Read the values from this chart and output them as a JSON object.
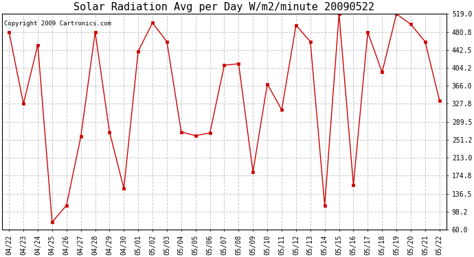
{
  "title": "Solar Radiation Avg per Day W/m2/minute 20090522",
  "copyright": "Copyright 2009 Cartronics.com",
  "x_labels": [
    "04/22",
    "04/23",
    "04/24",
    "04/25",
    "04/26",
    "04/27",
    "04/28",
    "04/29",
    "04/30",
    "05/01",
    "05/02",
    "05/03",
    "05/04",
    "05/05",
    "05/06",
    "05/07",
    "05/08",
    "05/09",
    "05/10",
    "05/11",
    "05/12",
    "05/13",
    "05/14",
    "05/15",
    "05/16",
    "05/17",
    "05/18",
    "05/19",
    "05/20",
    "05/21",
    "05/22"
  ],
  "y_values": [
    480.0,
    328.0,
    453.0,
    76.0,
    112.0,
    258.0,
    480.0,
    268.0,
    148.0,
    440.0,
    500.0,
    460.0,
    268.0,
    260.0,
    266.0,
    410.0,
    413.0,
    183.0,
    370.0,
    315.0,
    495.0,
    460.0,
    112.0,
    519.0,
    155.0,
    480.0,
    395.0,
    519.0,
    497.0,
    460.0,
    335.0
  ],
  "line_color": "#CC0000",
  "marker": "s",
  "marker_size": 3,
  "marker_color": "#CC0000",
  "bg_color": "#ffffff",
  "grid_color": "#c8c8c8",
  "grid_style": "--",
  "y_ticks": [
    60.0,
    98.2,
    136.5,
    174.8,
    213.0,
    251.2,
    289.5,
    327.8,
    366.0,
    404.2,
    442.5,
    480.8,
    519.0
  ],
  "ylim": [
    60.0,
    519.0
  ],
  "title_fontsize": 11,
  "copyright_fontsize": 6.5,
  "tick_fontsize": 7,
  "ytick_fontsize": 7
}
